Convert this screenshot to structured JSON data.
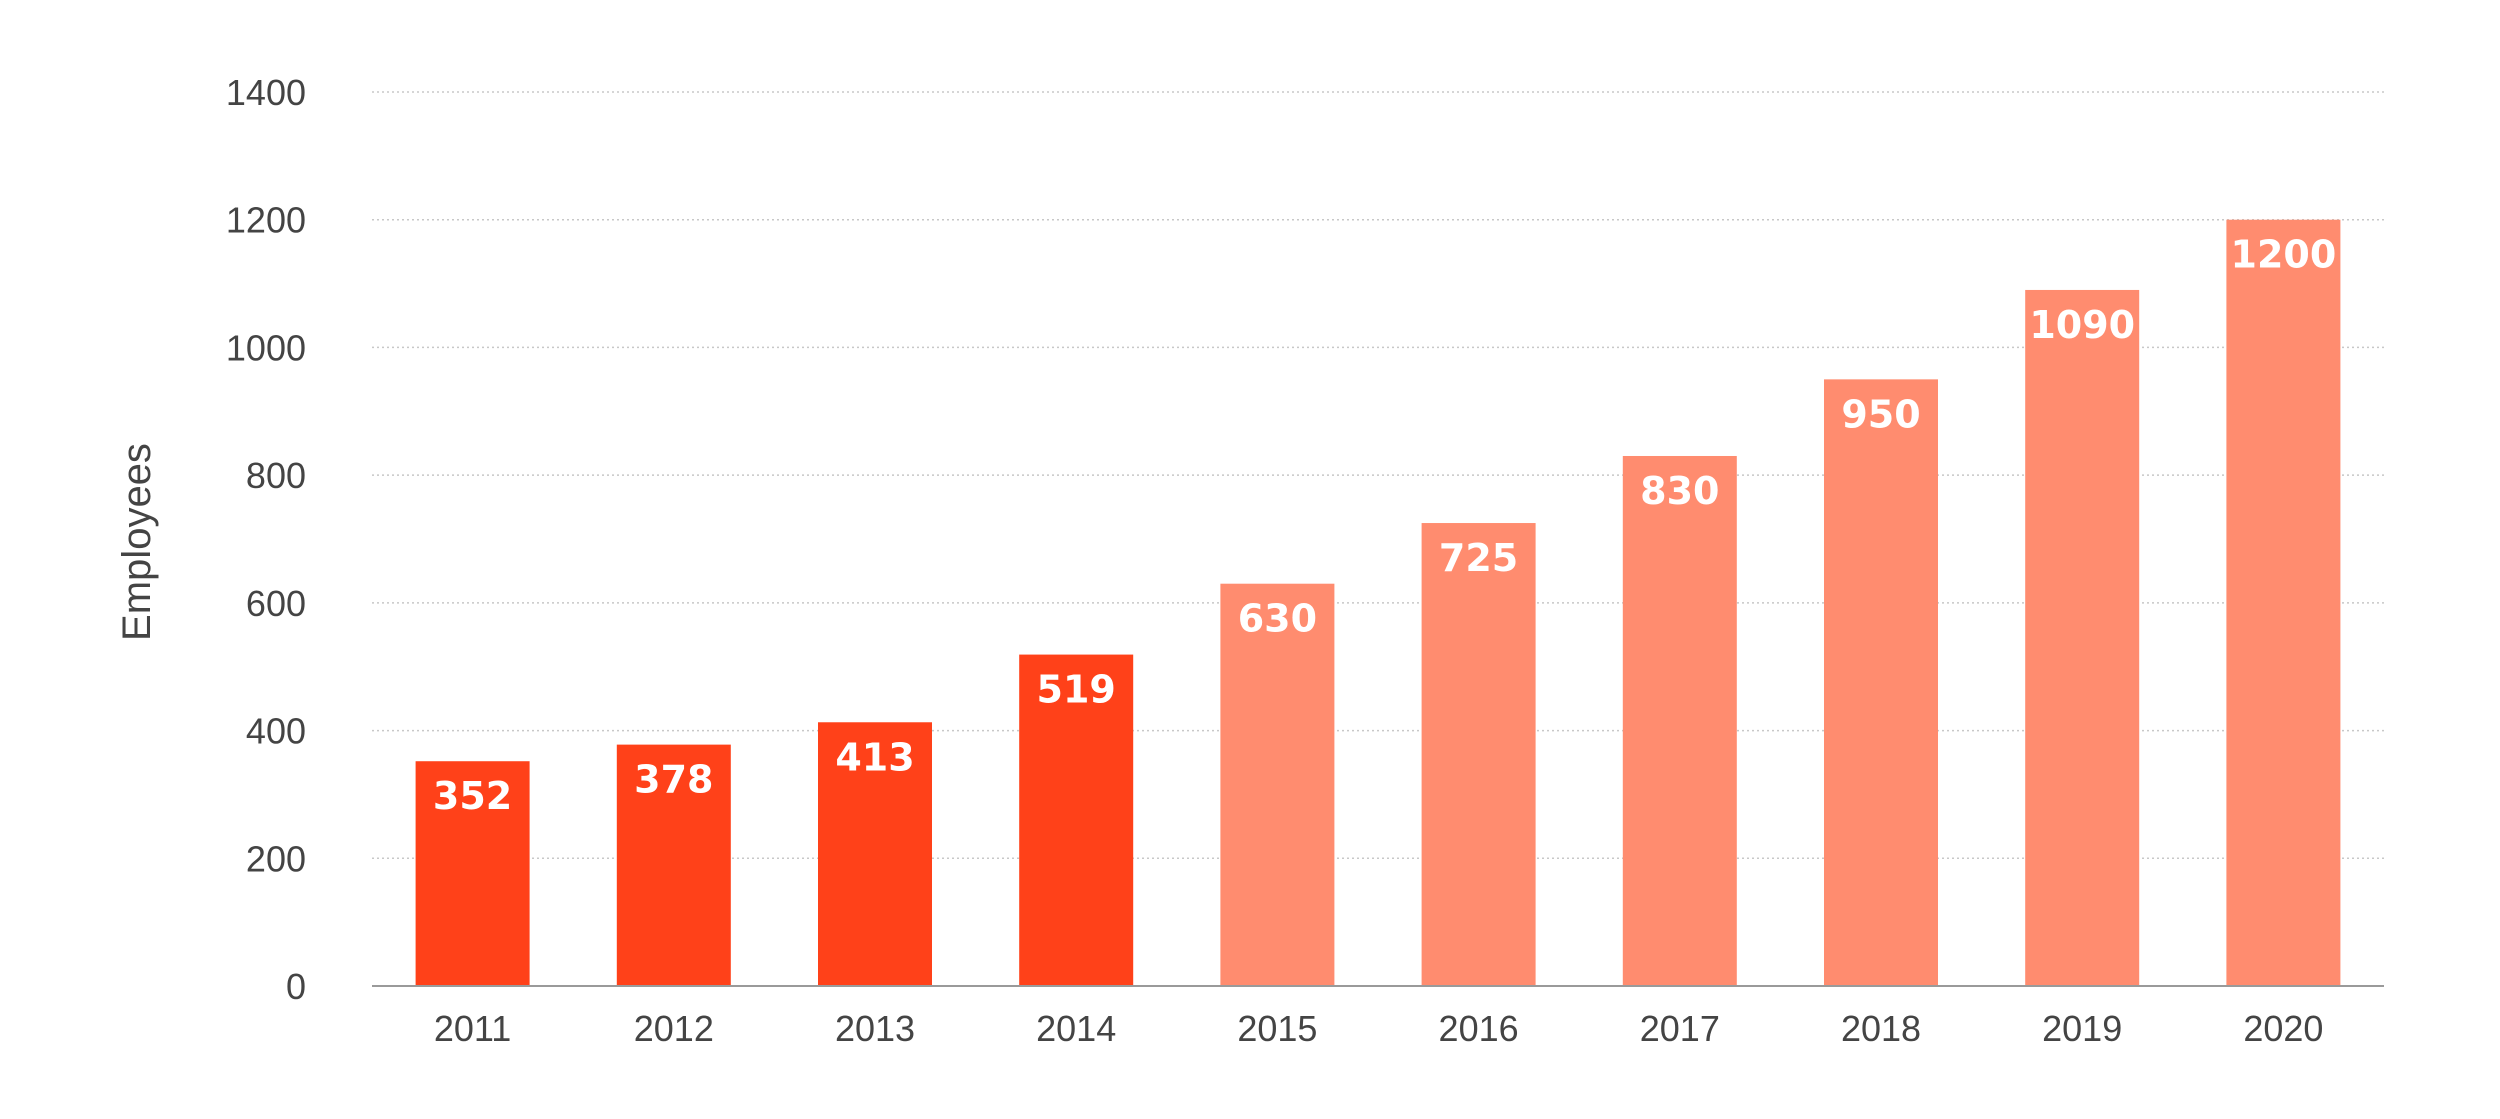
{
  "chart_data": {
    "type": "bar",
    "title": "",
    "xlabel": "",
    "ylabel": "Employees",
    "ylim": [
      0,
      1400
    ],
    "yticks": [
      0,
      200,
      400,
      600,
      800,
      1000,
      1200,
      1400
    ],
    "grid": true,
    "legend": "none",
    "categories": [
      "2011",
      "2012",
      "2013",
      "2014",
      "2015",
      "2016",
      "2017",
      "2018",
      "2019",
      "2020"
    ],
    "values": [
      352,
      378,
      413,
      519,
      630,
      725,
      830,
      950,
      1090,
      1200
    ],
    "data_labels": [
      "352",
      "378",
      "413",
      "519",
      "630",
      "725",
      "830",
      "950",
      "1090",
      "1200"
    ],
    "bar_colors": [
      "#ff4119",
      "#ff4119",
      "#ff4119",
      "#ff4119",
      "#ff8c6f",
      "#ff8c6f",
      "#ff8c6f",
      "#ff8c6f",
      "#ff8c6f",
      "#ff8c6f"
    ]
  }
}
